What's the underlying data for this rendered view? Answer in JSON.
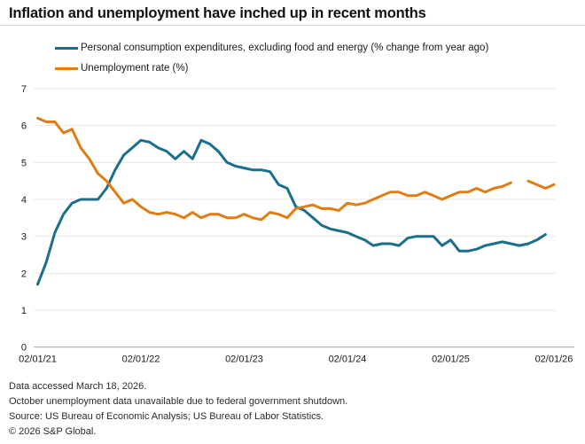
{
  "header": {
    "title": "Inflation and unemployment have inched up in recent months"
  },
  "legend": {
    "items": [
      {
        "label": "Personal consumption expenditures, excluding food and energy (% change from year ago)",
        "color": "#1B6E8C"
      },
      {
        "label": "Unemployment rate (%)",
        "color": "#E07C12"
      }
    ]
  },
  "footnotes": {
    "line1": "Data accessed March 18, 2026.",
    "line2": "October unemployment data unavailable due to federal government shutdown.",
    "line3": "Source: US Bureau of Economic Analysis; US Bureau of Labor Statistics.",
    "line4": "© 2026 S&P Global."
  },
  "chart_data": {
    "type": "line",
    "title": "Inflation and unemployment have inched up in recent months",
    "xlabel": "",
    "ylabel": "",
    "ylim": [
      0,
      7
    ],
    "grid": "horizontal",
    "legend_position": "top-left",
    "y_ticks": [
      0,
      1,
      2,
      3,
      4,
      5,
      6,
      7
    ],
    "x_tick_labels": [
      "02/01/21",
      "02/01/22",
      "02/01/23",
      "02/01/24",
      "02/01/25",
      "02/01/26"
    ],
    "x_tick_month_index": [
      0,
      12,
      24,
      36,
      48,
      60
    ],
    "x": [
      "2021-02",
      "2021-03",
      "2021-04",
      "2021-05",
      "2021-06",
      "2021-07",
      "2021-08",
      "2021-09",
      "2021-10",
      "2021-11",
      "2021-12",
      "2022-01",
      "2022-02",
      "2022-03",
      "2022-04",
      "2022-05",
      "2022-06",
      "2022-07",
      "2022-08",
      "2022-09",
      "2022-10",
      "2022-11",
      "2022-12",
      "2023-01",
      "2023-02",
      "2023-03",
      "2023-04",
      "2023-05",
      "2023-06",
      "2023-07",
      "2023-08",
      "2023-09",
      "2023-10",
      "2023-11",
      "2023-12",
      "2024-01",
      "2024-02",
      "2024-03",
      "2024-04",
      "2024-05",
      "2024-06",
      "2024-07",
      "2024-08",
      "2024-09",
      "2024-10",
      "2024-11",
      "2024-12",
      "2025-01",
      "2025-02",
      "2025-03",
      "2025-04",
      "2025-05",
      "2025-06",
      "2025-07",
      "2025-08",
      "2025-09",
      "2025-10",
      "2025-11",
      "2025-12",
      "2026-01",
      "2026-02"
    ],
    "series": [
      {
        "name": "Personal consumption expenditures, excluding food and energy (% change from year ago)",
        "color": "#1B6E8C",
        "values": [
          1.7,
          2.3,
          3.1,
          3.6,
          3.9,
          4.0,
          4.0,
          4.0,
          4.3,
          4.8,
          5.2,
          5.4,
          5.6,
          5.55,
          5.4,
          5.3,
          5.1,
          5.3,
          5.1,
          5.6,
          5.5,
          5.3,
          5.0,
          4.9,
          4.85,
          4.8,
          4.8,
          4.75,
          4.4,
          4.3,
          3.8,
          3.7,
          3.5,
          3.3,
          3.2,
          3.15,
          3.1,
          3.0,
          2.9,
          2.75,
          2.8,
          2.8,
          2.75,
          2.95,
          3.0,
          3.0,
          3.0,
          2.75,
          2.9,
          2.6,
          2.6,
          2.65,
          2.75,
          2.8,
          2.85,
          2.8,
          2.75,
          2.8,
          2.9,
          3.05,
          null
        ]
      },
      {
        "name": "Unemployment rate (%)",
        "color": "#E07C12",
        "values": [
          6.2,
          6.1,
          6.1,
          5.8,
          5.9,
          5.4,
          5.1,
          4.7,
          4.5,
          4.2,
          3.9,
          4.0,
          3.8,
          3.65,
          3.6,
          3.65,
          3.6,
          3.5,
          3.65,
          3.5,
          3.6,
          3.6,
          3.5,
          3.5,
          3.6,
          3.5,
          3.45,
          3.65,
          3.6,
          3.5,
          3.75,
          3.8,
          3.85,
          3.75,
          3.75,
          3.7,
          3.9,
          3.85,
          3.9,
          4.0,
          4.1,
          4.2,
          4.2,
          4.1,
          4.1,
          4.2,
          4.1,
          4.0,
          4.1,
          4.2,
          4.2,
          4.3,
          4.2,
          4.3,
          4.35,
          4.45,
          null,
          4.5,
          4.4,
          4.3,
          4.4
        ]
      }
    ],
    "annotations": [
      "Gap in unemployment line at 2025-10 (data unavailable due to federal government shutdown)"
    ]
  }
}
